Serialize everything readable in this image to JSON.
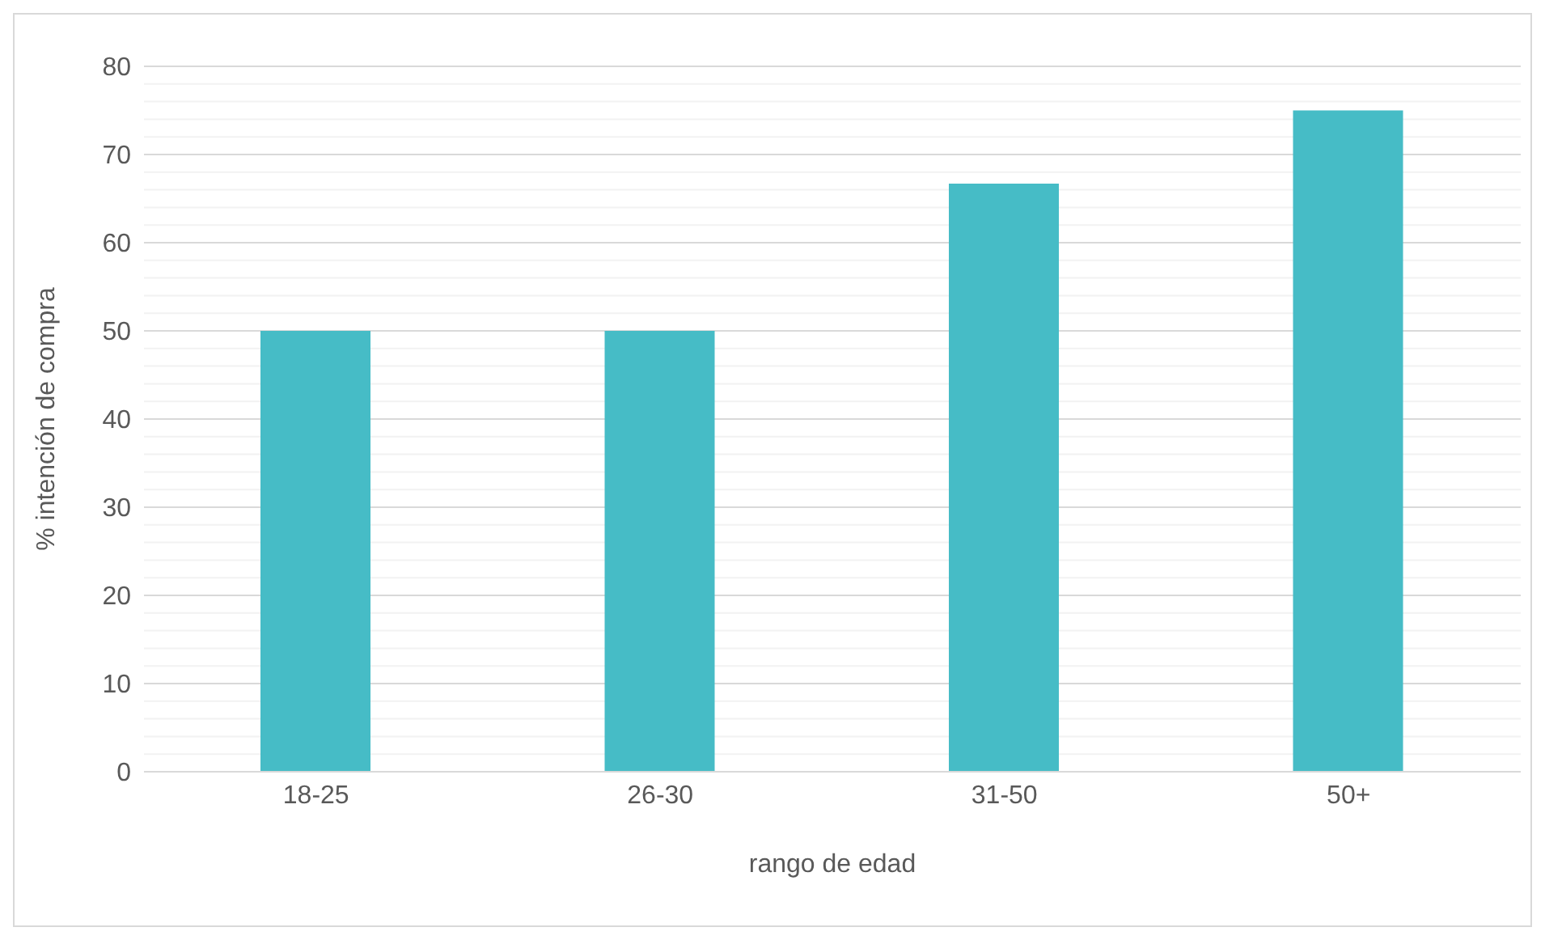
{
  "chart_data": {
    "type": "bar",
    "xlabel": "rango de edad",
    "ylabel": "% intención de compra",
    "categories": [
      "18-25",
      "26-30",
      "31-50",
      "50+"
    ],
    "values": [
      50,
      50,
      66.7,
      75
    ],
    "color": "#46bcc6",
    "ylim": [
      0,
      80
    ],
    "yticks": [
      0,
      {
        "value": 2,
        "label": null
      },
      {
        "value": 4,
        "label": null
      },
      {
        "value": 6,
        "label": null
      },
      {
        "value": 8,
        "label": null
      },
      10,
      {
        "value": 12,
        "label": null
      },
      {
        "value": 14,
        "label": null
      },
      {
        "value": 16,
        "label": null
      },
      {
        "value": 18,
        "label": null
      },
      20,
      {
        "value": 22,
        "label": null
      },
      {
        "value": 24,
        "label": null
      },
      {
        "value": 26,
        "label": null
      },
      {
        "value": 28,
        "label": null
      },
      30,
      {
        "value": 32,
        "label": null
      },
      {
        "value": 34,
        "label": null
      },
      {
        "value": 36,
        "label": null
      },
      {
        "value": 38,
        "label": null
      },
      40,
      {
        "value": 42,
        "label": null
      },
      {
        "value": 44,
        "label": null
      },
      {
        "value": 46,
        "label": null
      },
      {
        "value": 48,
        "label": null
      },
      50,
      {
        "value": 52,
        "label": null
      },
      {
        "value": 54,
        "label": null
      },
      {
        "value": 56,
        "label": null
      },
      {
        "value": 58,
        "label": null
      },
      60,
      {
        "value": 62,
        "label": null
      },
      {
        "value": 64,
        "label": null
      },
      {
        "value": 66,
        "label": null
      },
      {
        "value": 68,
        "label": null
      },
      70,
      {
        "value": 72,
        "label": null
      },
      {
        "value": 74,
        "label": null
      },
      {
        "value": 76,
        "label": null
      },
      {
        "value": 78,
        "label": null
      },
      80
    ],
    "grid": "y",
    "legend": false
  }
}
